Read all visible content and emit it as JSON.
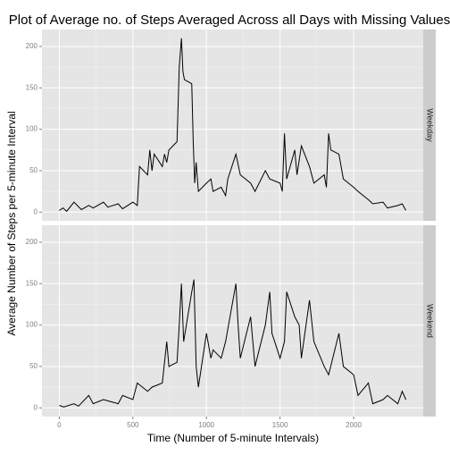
{
  "chart_data": {
    "type": "line",
    "title": "Plot of Average no. of Steps Averaged Across all Days with Missing Values",
    "xlabel": "Time (Number of 5-minute Intervals)",
    "ylabel": "Average Number of Steps per 5-minute Interval",
    "xlim": [
      -117.75,
      2472.75
    ],
    "xticks": [
      0,
      500,
      1000,
      1500,
      2000
    ],
    "ylim": [
      -10.5,
      220.5
    ],
    "yticks": [
      0,
      50,
      100,
      150,
      200
    ],
    "grid": true,
    "color": "#000000",
    "panels": [
      {
        "label": "Weekday",
        "x": [
          0,
          25,
          50,
          100,
          150,
          200,
          230,
          300,
          330,
          400,
          430,
          500,
          530,
          545,
          600,
          615,
          630,
          645,
          700,
          715,
          730,
          745,
          800,
          815,
          830,
          840,
          850,
          900,
          910,
          920,
          930,
          945,
          1000,
          1030,
          1045,
          1100,
          1130,
          1145,
          1200,
          1230,
          1300,
          1330,
          1400,
          1430,
          1500,
          1515,
          1530,
          1545,
          1600,
          1615,
          1645,
          1700,
          1730,
          1800,
          1815,
          1830,
          1845,
          1900,
          1930,
          2000,
          2030,
          2100,
          2130,
          2200,
          2230,
          2300,
          2330,
          2355
        ],
        "values": [
          2,
          5,
          1,
          12,
          3,
          8,
          5,
          12,
          6,
          10,
          4,
          12,
          8,
          55,
          45,
          75,
          50,
          70,
          55,
          70,
          60,
          75,
          85,
          175,
          210,
          170,
          160,
          155,
          85,
          35,
          60,
          25,
          35,
          40,
          25,
          30,
          20,
          40,
          70,
          45,
          35,
          25,
          50,
          40,
          35,
          25,
          95,
          40,
          75,
          45,
          80,
          55,
          35,
          45,
          30,
          95,
          75,
          70,
          40,
          30,
          25,
          15,
          10,
          12,
          5,
          8,
          10,
          2
        ]
      },
      {
        "label": "Weekend",
        "x": [
          0,
          30,
          100,
          130,
          200,
          230,
          300,
          400,
          430,
          500,
          530,
          600,
          630,
          700,
          730,
          745,
          800,
          815,
          830,
          845,
          900,
          915,
          930,
          945,
          1000,
          1030,
          1045,
          1100,
          1130,
          1200,
          1215,
          1230,
          1300,
          1330,
          1400,
          1430,
          1445,
          1500,
          1530,
          1545,
          1600,
          1630,
          1645,
          1700,
          1730,
          1800,
          1830,
          1900,
          1930,
          2000,
          2030,
          2100,
          2130,
          2200,
          2230,
          2300,
          2330,
          2355
        ],
        "values": [
          3,
          1,
          5,
          2,
          15,
          5,
          10,
          5,
          15,
          10,
          30,
          20,
          25,
          30,
          80,
          50,
          55,
          100,
          150,
          80,
          140,
          155,
          50,
          25,
          90,
          60,
          70,
          60,
          80,
          150,
          100,
          60,
          110,
          50,
          100,
          140,
          90,
          60,
          80,
          140,
          110,
          100,
          60,
          130,
          80,
          50,
          40,
          90,
          50,
          40,
          15,
          30,
          5,
          10,
          15,
          5,
          20,
          10
        ]
      }
    ]
  }
}
